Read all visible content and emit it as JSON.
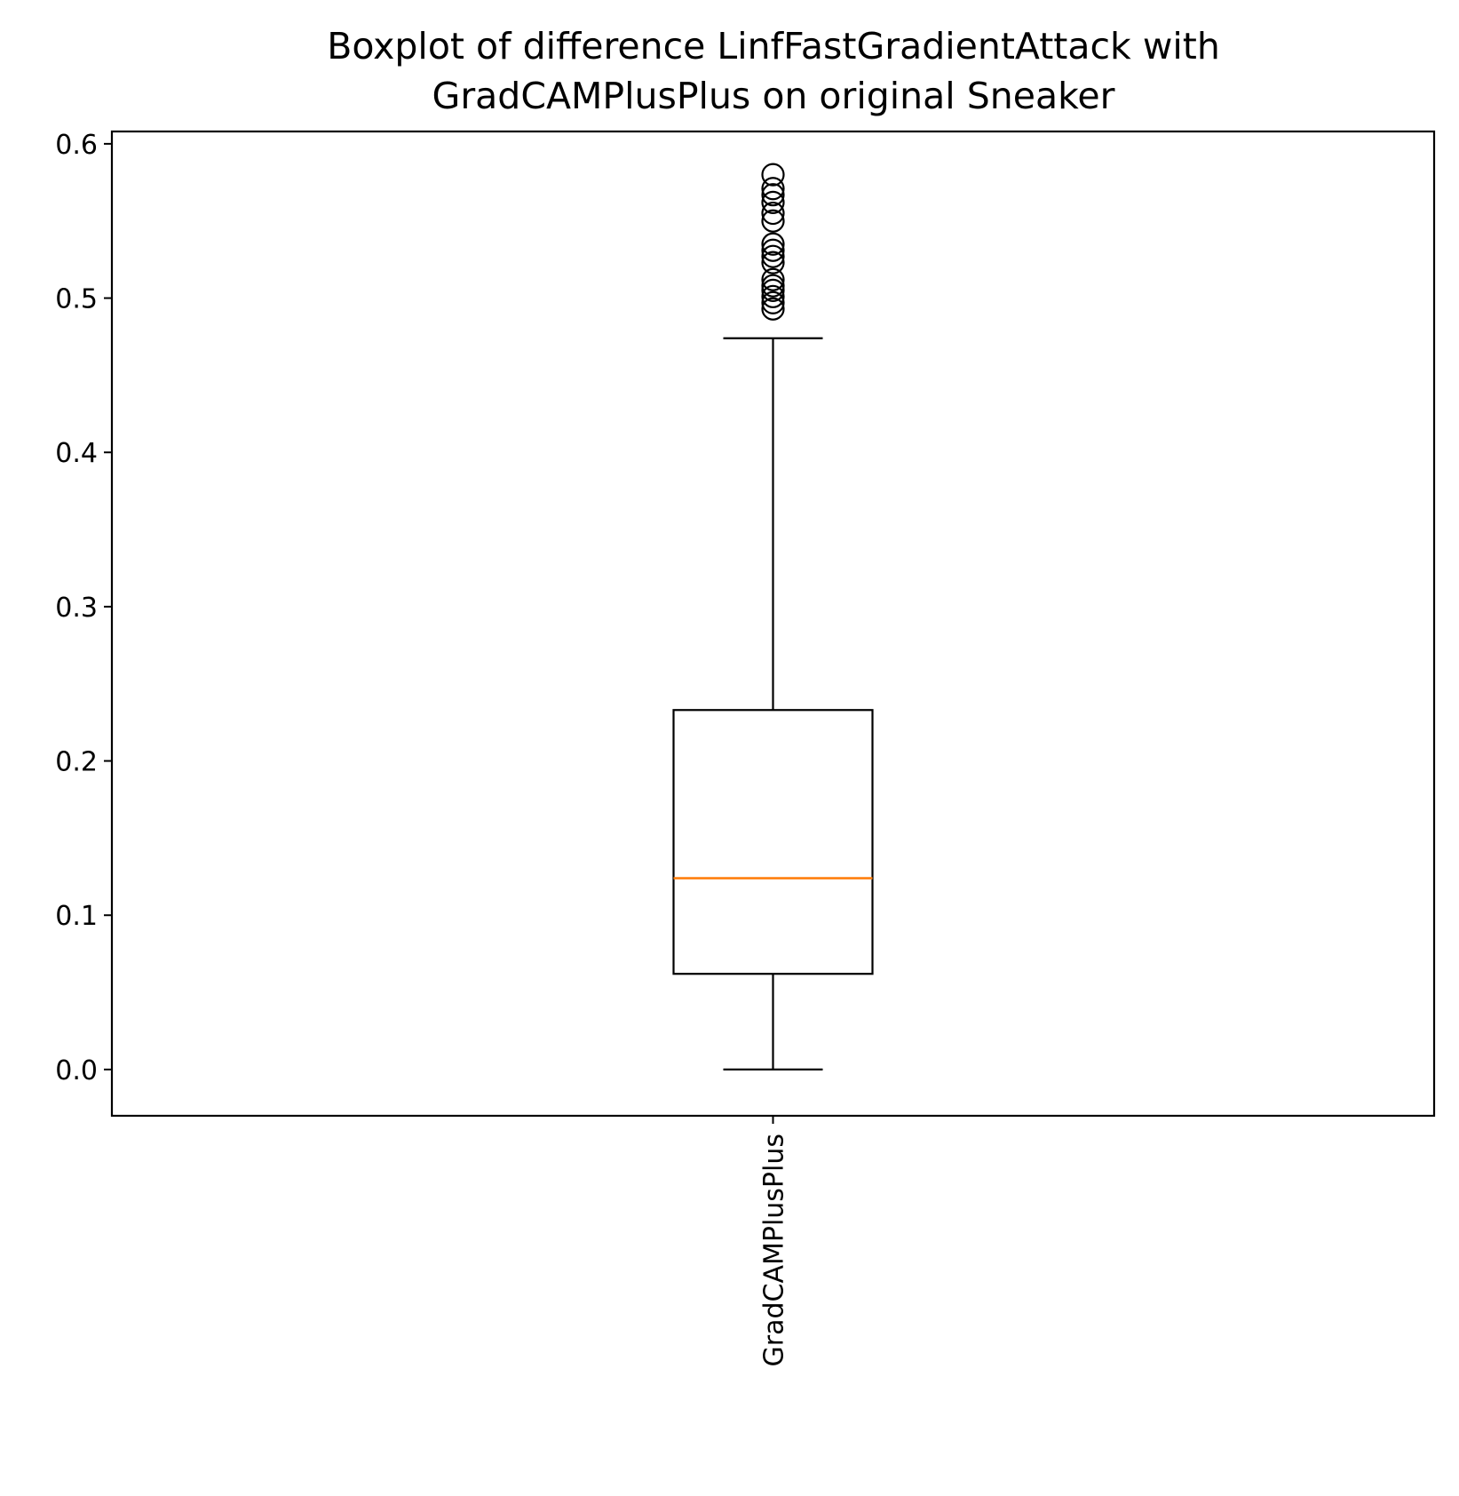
{
  "chart_data": {
    "type": "boxplot",
    "title_lines": [
      "Boxplot of difference LinfFastGradientAttack with",
      "GradCAMPlusPlus on original Sneaker"
    ],
    "xlabel": "",
    "ylabel": "",
    "categories": [
      "GradCAMPlusPlus"
    ],
    "ylim": [
      -0.03,
      0.608
    ],
    "yticks": [
      0.0,
      0.1,
      0.2,
      0.3,
      0.4,
      0.5,
      0.6
    ],
    "ytick_labels": [
      "0.0",
      "0.1",
      "0.2",
      "0.3",
      "0.4",
      "0.5",
      "0.6"
    ],
    "grid": false,
    "boxes": [
      {
        "category": "GradCAMPlusPlus",
        "whisker_low": 0.0,
        "q1": 0.062,
        "median": 0.124,
        "q3": 0.233,
        "whisker_high": 0.474,
        "outliers": [
          0.493,
          0.497,
          0.501,
          0.505,
          0.508,
          0.512,
          0.523,
          0.527,
          0.531,
          0.535,
          0.55,
          0.555,
          0.562,
          0.567,
          0.571,
          0.58
        ]
      }
    ],
    "colors": {
      "box": "#000000",
      "median": "#ff7f0e",
      "outlier": "#000000"
    }
  }
}
